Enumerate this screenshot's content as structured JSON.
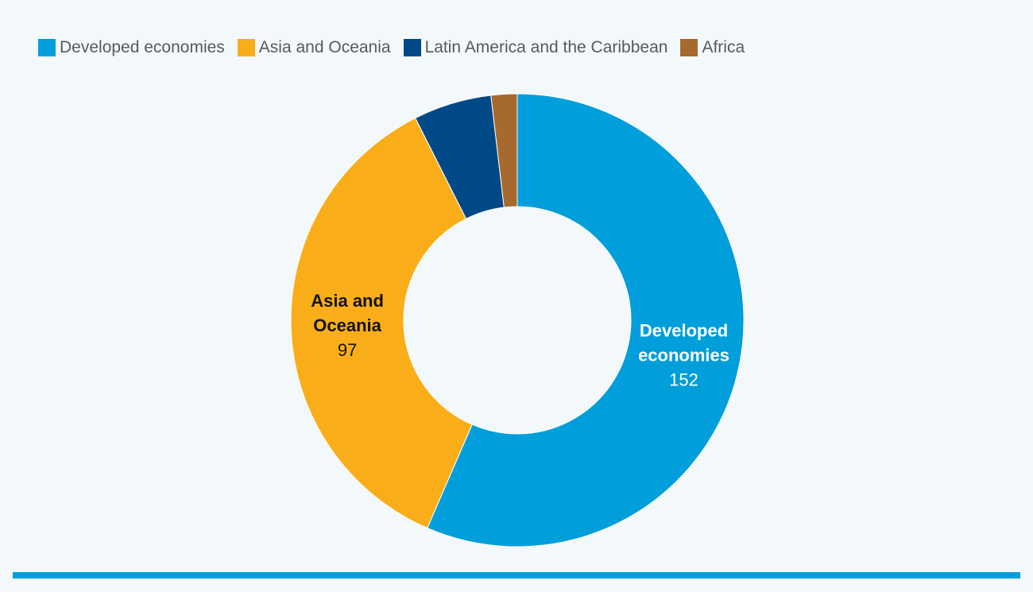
{
  "chart_data": {
    "type": "pie",
    "donut": true,
    "categories": [
      "Developed economies",
      "Asia and Oceania",
      "Latin America and the Caribbean",
      "Africa"
    ],
    "values": [
      152,
      97,
      15,
      5
    ],
    "colors": [
      "#009edb",
      "#f9ae19",
      "#004987",
      "#a66a2e"
    ],
    "legend": {
      "placement": "top-left"
    },
    "labels": [
      {
        "index": 0,
        "text_lines": [
          "Developed",
          "economies"
        ],
        "value": "152",
        "text_color": "#ffffff"
      },
      {
        "index": 1,
        "text_lines": [
          "Asia and",
          "Oceania"
        ],
        "value": "97",
        "text_color": "#111111"
      }
    ]
  },
  "theme": {
    "background": "#f3f8fb",
    "accent_bar": "#009edb"
  }
}
